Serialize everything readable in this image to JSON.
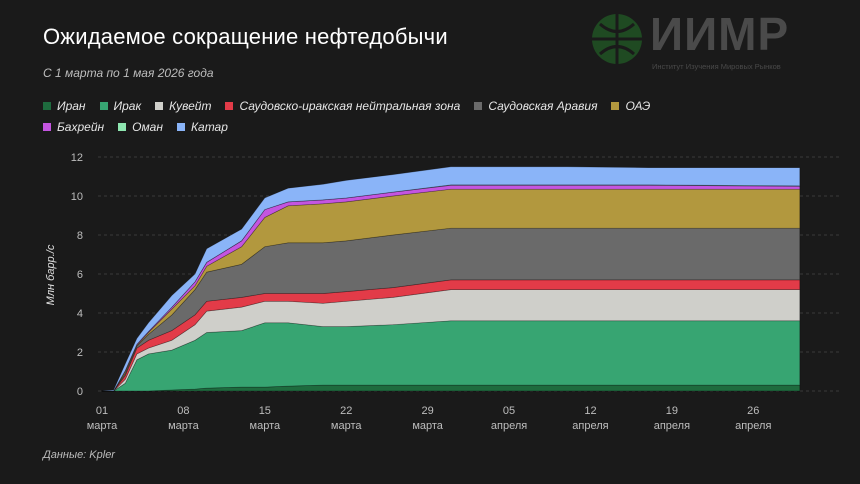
{
  "title": "Ожидаемое сокращение нефтедобычи",
  "subtitle": "С 1 марта по 1 мая 2026 года",
  "source": "Данные: Kpler",
  "watermark": {
    "logo_text": "ИИМР",
    "org_name": "Институт Изучения Мировых Рынков"
  },
  "chart_data": {
    "type": "area",
    "stacked": true,
    "title": "Ожидаемое сокращение нефтедобычи",
    "xlabel": "",
    "ylabel": "Млн барр./с",
    "ylim": [
      0,
      12
    ],
    "yticks": [
      0,
      2,
      4,
      6,
      8,
      10,
      12
    ],
    "grid": true,
    "legend_position": "top",
    "x": [
      "2026-03-01",
      "2026-03-02",
      "2026-03-03",
      "2026-03-04",
      "2026-03-05",
      "2026-03-07",
      "2026-03-09",
      "2026-03-10",
      "2026-03-13",
      "2026-03-15",
      "2026-03-17",
      "2026-03-20",
      "2026-03-22",
      "2026-03-26",
      "2026-03-31",
      "2026-04-10",
      "2026-04-17",
      "2026-04-30"
    ],
    "xticks": [
      {
        "date": "2026-03-01",
        "day": "01",
        "month": "марта"
      },
      {
        "date": "2026-03-08",
        "day": "08",
        "month": "марта"
      },
      {
        "date": "2026-03-15",
        "day": "15",
        "month": "марта"
      },
      {
        "date": "2026-03-22",
        "day": "22",
        "month": "марта"
      },
      {
        "date": "2026-03-29",
        "day": "29",
        "month": "марта"
      },
      {
        "date": "2026-04-05",
        "day": "05",
        "month": "апреля"
      },
      {
        "date": "2026-04-12",
        "day": "12",
        "month": "апреля"
      },
      {
        "date": "2026-04-19",
        "day": "19",
        "month": "апреля"
      },
      {
        "date": "2026-04-26",
        "day": "26",
        "month": "апреля"
      }
    ],
    "series": [
      {
        "name": "Иран",
        "color": "#1e6b3e",
        "values": [
          0,
          0,
          0,
          0,
          0,
          0.05,
          0.1,
          0.15,
          0.2,
          0.2,
          0.25,
          0.3,
          0.3,
          0.3,
          0.3,
          0.3,
          0.3,
          0.3
        ]
      },
      {
        "name": "Ирак",
        "color": "#37a572",
        "values": [
          0,
          0,
          0.4,
          1.6,
          1.9,
          2.05,
          2.5,
          2.85,
          2.9,
          3.3,
          3.25,
          3.0,
          3.0,
          3.1,
          3.3,
          3.3,
          3.3,
          3.3
        ]
      },
      {
        "name": "Кувейт",
        "color": "#cfcfca",
        "values": [
          0,
          0,
          0.2,
          0.3,
          0.3,
          0.5,
          0.8,
          1.1,
          1.2,
          1.1,
          1.1,
          1.2,
          1.3,
          1.4,
          1.6,
          1.6,
          1.6,
          1.6
        ]
      },
      {
        "name": "Саудовско-иракская нейтральная зона",
        "color": "#e23b48",
        "values": [
          0,
          0,
          0.2,
          0.3,
          0.4,
          0.5,
          0.5,
          0.5,
          0.5,
          0.4,
          0.4,
          0.5,
          0.5,
          0.5,
          0.5,
          0.5,
          0.5,
          0.5
        ]
      },
      {
        "name": "Саудовская Аравия",
        "color": "#6a6a6a",
        "values": [
          0,
          0,
          0.1,
          0.1,
          0.3,
          0.8,
          1.3,
          1.5,
          1.7,
          2.4,
          2.6,
          2.6,
          2.6,
          2.7,
          2.65,
          2.65,
          2.65,
          2.65
        ]
      },
      {
        "name": "ОАЭ",
        "color": "#b2983e",
        "values": [
          0,
          0,
          0.1,
          0.05,
          0.1,
          0.3,
          0.2,
          0.3,
          0.9,
          1.5,
          1.9,
          2.0,
          2.0,
          2.0,
          2.0,
          2.0,
          2.0,
          2.0
        ]
      },
      {
        "name": "Бахрейн",
        "color": "#c455e0",
        "values": [
          0,
          0,
          0.05,
          0.05,
          0.05,
          0.1,
          0.2,
          0.2,
          0.3,
          0.4,
          0.2,
          0.2,
          0.2,
          0.2,
          0.2,
          0.2,
          0.2,
          0.15
        ]
      },
      {
        "name": "Оман",
        "color": "#8ee6b0",
        "values": [
          0,
          0,
          0,
          0,
          0,
          0,
          0,
          0,
          0,
          0,
          0,
          0,
          0,
          0,
          0.02,
          0.02,
          0.02,
          0.02
        ]
      },
      {
        "name": "Катар",
        "color": "#8ab4f8",
        "values": [
          0,
          0.05,
          0.35,
          0.3,
          0.45,
          0.6,
          0.4,
          0.7,
          0.6,
          0.6,
          0.7,
          0.8,
          0.9,
          0.9,
          0.93,
          0.93,
          0.88,
          0.93
        ]
      }
    ]
  }
}
